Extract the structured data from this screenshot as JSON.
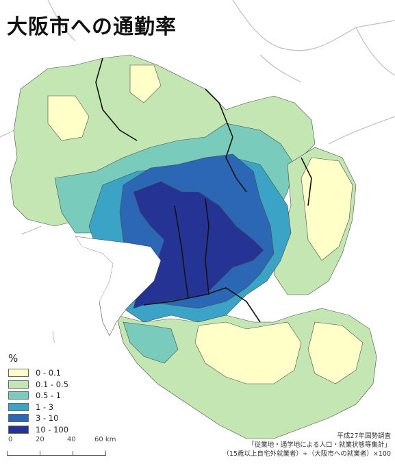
{
  "title": "大阪市への通勤率",
  "legend": {
    "title": "%",
    "items": [
      {
        "label": "0 - 0.1",
        "color": "#ffffc8"
      },
      {
        "label": "0.1 - 0.5",
        "color": "#c3e6b3"
      },
      {
        "label": "0.5 - 1",
        "color": "#79cbbb"
      },
      {
        "label": "1 - 3",
        "color": "#3aa3c6"
      },
      {
        "label": "3 - 10",
        "color": "#2c67b6"
      },
      {
        "label": "10 - 100",
        "color": "#253494"
      }
    ]
  },
  "scale": {
    "ticks": [
      "0",
      "20",
      "40",
      "60 km"
    ]
  },
  "source": {
    "line1": "平成27年国勢調査",
    "line2": "「従業地・通学地による人口・就業状態等集計」",
    "line3": "（15歳以上自宅外就業者）÷（大阪市への就業者）×100"
  }
}
